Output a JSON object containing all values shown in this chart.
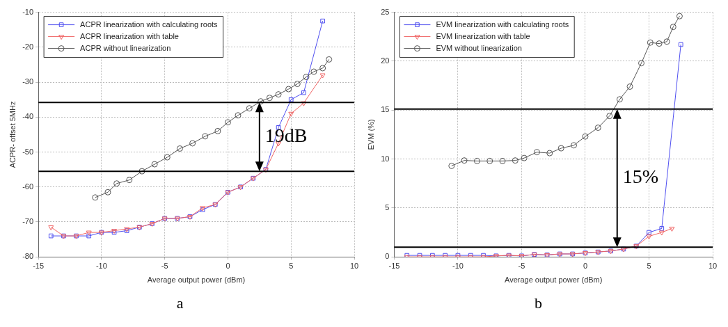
{
  "chart_data": [
    {
      "type": "line",
      "title": "a",
      "xlabel": "Average output power (dBm)",
      "ylabel": "ACPR- offset 5MHz",
      "xlim": [
        -15,
        10
      ],
      "ylim": [
        -80,
        -10
      ],
      "xticks": [
        -15,
        -10,
        -5,
        0,
        5,
        10
      ],
      "yticks": [
        -80,
        -70,
        -60,
        -50,
        -40,
        -30,
        -20,
        -10
      ],
      "grid": true,
      "legend": "top left",
      "series": [
        {
          "name": "ACPR linearization with calculating roots",
          "color": "#4f4ff0",
          "marker": "square",
          "x": [
            -14,
            -13,
            -12,
            -11,
            -10,
            -9,
            -8,
            -7,
            -6,
            -5,
            -4,
            -3,
            -2,
            -1,
            0,
            1,
            2,
            3,
            4,
            5,
            6,
            7.5
          ],
          "values": [
            -74,
            -74,
            -74,
            -74,
            -73,
            -73,
            -72.5,
            -71.5,
            -70.5,
            -69,
            -69,
            -68.5,
            -66.5,
            -65,
            -61.5,
            -60,
            -57.5,
            -55,
            -43,
            -35,
            -33,
            -12.5
          ]
        },
        {
          "name": "ACPR linearization with table",
          "color": "#f06464",
          "marker": "triangle",
          "x": [
            -14,
            -13,
            -12,
            -11,
            -10,
            -9,
            -8,
            -7,
            -6,
            -5,
            -4,
            -3,
            -2,
            -1,
            0,
            1,
            2,
            3,
            4,
            5,
            6,
            7.5
          ],
          "values": [
            -71.5,
            -74,
            -74,
            -73,
            -73,
            -72.5,
            -72,
            -71.5,
            -70.5,
            -69,
            -69,
            -68.5,
            -66,
            -65,
            -61.5,
            -60,
            -57.5,
            -55,
            -47.5,
            -39,
            -36,
            -28
          ]
        },
        {
          "name": "ACPR without linearization",
          "color": "#555555",
          "marker": "circle",
          "x": [
            -10.5,
            -9.5,
            -8.8,
            -7.8,
            -6.8,
            -5.8,
            -4.8,
            -3.8,
            -2.8,
            -1.8,
            -0.8,
            0,
            0.8,
            1.7,
            2.6,
            3.3,
            4,
            4.8,
            5.5,
            6.2,
            6.8,
            7.5,
            8
          ],
          "values": [
            -63,
            -61.5,
            -59,
            -58,
            -55.5,
            -53.5,
            -51.5,
            -49,
            -47.5,
            -45.5,
            -44,
            -41.5,
            -39.5,
            -37.5,
            -35.5,
            -34.5,
            -33.5,
            -32,
            -30.5,
            -28.5,
            -27,
            -26,
            -23.5
          ]
        }
      ],
      "ref_lines": [
        {
          "axis": "y",
          "value": -35.8,
          "color": "#000000"
        },
        {
          "axis": "y",
          "value": -55.5,
          "color": "#000000"
        }
      ],
      "annotations": [
        "19dB"
      ]
    },
    {
      "type": "line",
      "title": "b",
      "xlabel": "Average output power (dBm)",
      "ylabel": "EVM (%)",
      "xlim": [
        -15,
        10
      ],
      "ylim": [
        0,
        25
      ],
      "xticks": [
        -15,
        -10,
        -5,
        0,
        5,
        10
      ],
      "yticks": [
        0,
        5,
        10,
        15,
        20,
        25
      ],
      "grid": true,
      "legend": "top left",
      "series": [
        {
          "name": "EVM linearization with calculating roots",
          "color": "#4f4ff0",
          "marker": "square",
          "x": [
            -14,
            -13,
            -12,
            -11,
            -10,
            -9,
            -8,
            -7,
            -6,
            -5,
            -4,
            -3,
            -2,
            -1,
            0,
            1,
            2,
            3,
            4,
            5,
            6,
            7.5
          ],
          "values": [
            0.15,
            0.15,
            0.15,
            0.15,
            0.15,
            0.15,
            0.15,
            0.1,
            0.15,
            0.1,
            0.25,
            0.2,
            0.3,
            0.3,
            0.4,
            0.5,
            0.6,
            0.8,
            1.1,
            2.5,
            2.9,
            21.7
          ]
        },
        {
          "name": "EVM linearization with table",
          "color": "#f06464",
          "marker": "triangle",
          "x": [
            -14,
            -13,
            -12,
            -11,
            -10,
            -9,
            -8,
            -7,
            -6,
            -5,
            -4,
            -3,
            -2,
            -1,
            0,
            1,
            2,
            3,
            4,
            5,
            6,
            6.8
          ],
          "values": [
            0,
            0,
            0,
            0,
            0,
            0,
            0,
            0.1,
            0.15,
            0.1,
            0.25,
            0.2,
            0.3,
            0.3,
            0.4,
            0.5,
            0.6,
            0.8,
            1.1,
            2.1,
            2.5,
            2.9
          ]
        },
        {
          "name": "EVM without linearization",
          "color": "#555555",
          "marker": "circle",
          "x": [
            -10.5,
            -9.5,
            -8.5,
            -7.5,
            -6.5,
            -5.5,
            -4.8,
            -3.8,
            -2.8,
            -1.9,
            -0.9,
            0,
            1,
            1.9,
            2.7,
            3.5,
            4.4,
            5.1,
            5.8,
            6.4,
            6.9,
            7.4
          ],
          "values": [
            9.3,
            9.85,
            9.8,
            9.8,
            9.8,
            9.85,
            10.1,
            10.7,
            10.6,
            11.1,
            11.4,
            12.3,
            13.2,
            14.4,
            16.1,
            17.4,
            19.8,
            21.9,
            21.8,
            22,
            23.5,
            24.6
          ]
        }
      ],
      "ref_lines": [
        {
          "axis": "y",
          "value": 15.1,
          "color": "#000000"
        },
        {
          "axis": "y",
          "value": 1,
          "color": "#000000"
        }
      ],
      "annotations": [
        "15%"
      ]
    }
  ]
}
